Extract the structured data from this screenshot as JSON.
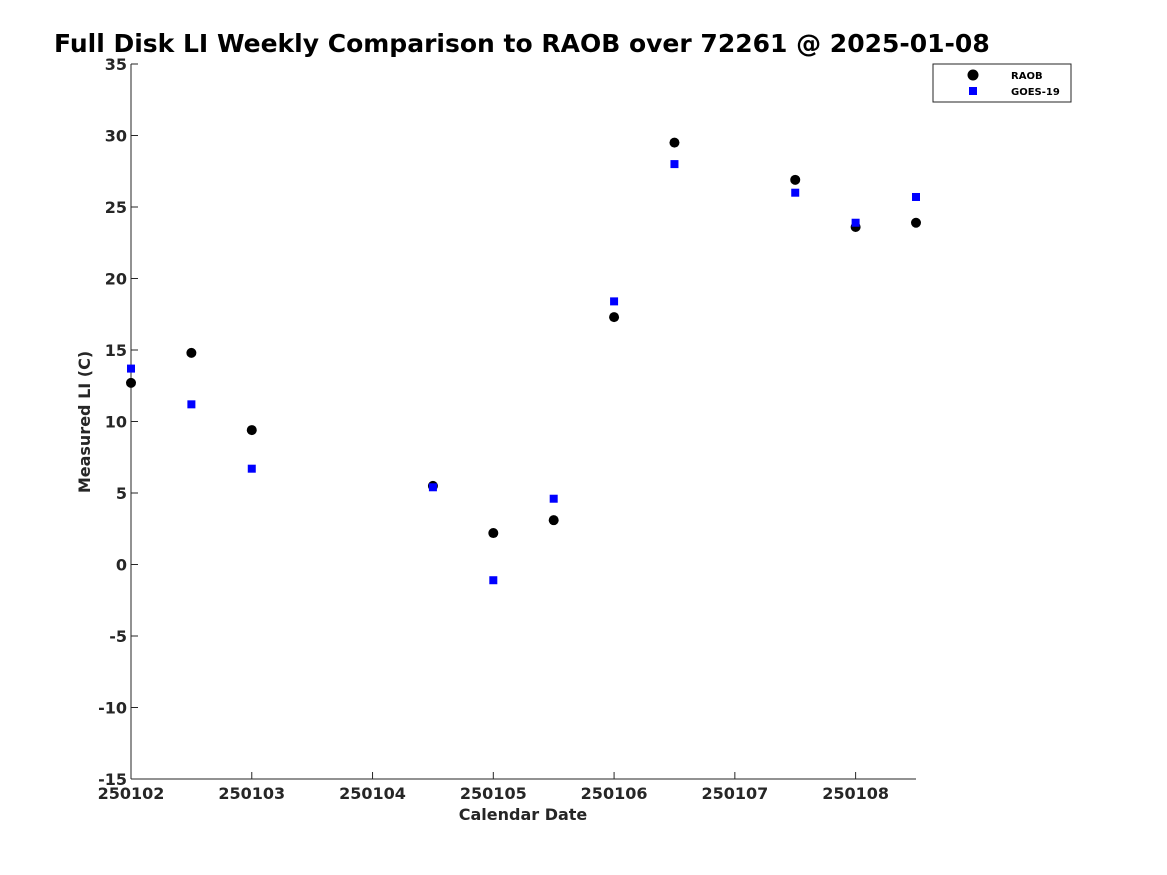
{
  "chart_data": {
    "type": "scatter",
    "title": "Full Disk LI Weekly Comparison to RAOB over 72261 @ 2025-01-08",
    "xlabel": "Calendar Date",
    "ylabel": "Measured LI (C)",
    "ylim": [
      -15,
      35
    ],
    "yticks": [
      -15,
      -10,
      -5,
      0,
      5,
      10,
      15,
      20,
      25,
      30,
      35
    ],
    "xlim": [
      0,
      6.5
    ],
    "xticks": [
      {
        "pos": 0,
        "label": "250102"
      },
      {
        "pos": 1,
        "label": "250103"
      },
      {
        "pos": 2,
        "label": "250104"
      },
      {
        "pos": 3,
        "label": "250105"
      },
      {
        "pos": 4,
        "label": "250106"
      },
      {
        "pos": 5,
        "label": "250107"
      },
      {
        "pos": 6,
        "label": "250108"
      }
    ],
    "legend_position": "top-right",
    "series": [
      {
        "name": "RAOB",
        "marker": "circle",
        "color": "#000000",
        "points": [
          {
            "x": 0.0,
            "y": 12.7
          },
          {
            "x": 0.5,
            "y": 14.8
          },
          {
            "x": 1.0,
            "y": 9.4
          },
          {
            "x": 2.5,
            "y": 5.5
          },
          {
            "x": 3.0,
            "y": 2.2
          },
          {
            "x": 3.5,
            "y": 3.1
          },
          {
            "x": 4.0,
            "y": 17.3
          },
          {
            "x": 4.5,
            "y": 29.5
          },
          {
            "x": 5.5,
            "y": 26.9
          },
          {
            "x": 6.0,
            "y": 23.6
          },
          {
            "x": 6.5,
            "y": 23.9
          }
        ]
      },
      {
        "name": "GOES-19",
        "marker": "square",
        "color": "#0000ff",
        "points": [
          {
            "x": 0.0,
            "y": 13.7
          },
          {
            "x": 0.5,
            "y": 11.2
          },
          {
            "x": 1.0,
            "y": 6.7
          },
          {
            "x": 2.5,
            "y": 5.4
          },
          {
            "x": 3.0,
            "y": -1.1
          },
          {
            "x": 3.5,
            "y": 4.6
          },
          {
            "x": 4.0,
            "y": 18.4
          },
          {
            "x": 4.5,
            "y": 28.0
          },
          {
            "x": 5.5,
            "y": 26.0
          },
          {
            "x": 6.0,
            "y": 23.9
          },
          {
            "x": 6.5,
            "y": 25.7
          }
        ]
      }
    ]
  }
}
